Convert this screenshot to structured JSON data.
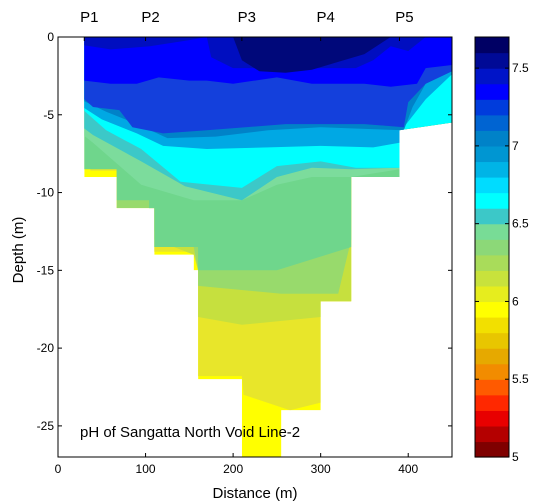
{
  "chart_data": {
    "type": "heatmap",
    "title": "pH of Sangatta North Void Line-2",
    "xlabel": "Distance (m)",
    "ylabel": "Depth (m)",
    "xlim": [
      0,
      450
    ],
    "ylim": [
      -27,
      0
    ],
    "x_ticks": [
      {
        "value": 0,
        "label": "0"
      },
      {
        "value": 100,
        "label": "100"
      },
      {
        "value": 200,
        "label": "200"
      },
      {
        "value": 300,
        "label": "300"
      },
      {
        "value": 400,
        "label": "400"
      }
    ],
    "y_ticks": [
      {
        "value": 0,
        "label": "0"
      },
      {
        "value": -5,
        "label": "-5"
      },
      {
        "value": -10,
        "label": "-10"
      },
      {
        "value": -15,
        "label": "-15"
      },
      {
        "value": -20,
        "label": "-20"
      },
      {
        "value": -25,
        "label": "-25"
      }
    ],
    "stations": [
      {
        "label": "P1",
        "x": 30
      },
      {
        "label": "P2",
        "x": 100
      },
      {
        "label": "P3",
        "x": 210
      },
      {
        "label": "P4",
        "x": 300
      },
      {
        "label": "P5",
        "x": 390
      }
    ],
    "colorbar": {
      "range": [
        5,
        7.7
      ],
      "ticks": [
        {
          "value": 5,
          "label": "5"
        },
        {
          "value": 5.5,
          "label": "5.5"
        },
        {
          "value": 6,
          "label": "6"
        },
        {
          "value": 6.5,
          "label": "6.5"
        },
        {
          "value": 7,
          "label": "7"
        },
        {
          "value": 7.5,
          "label": "7.5"
        }
      ],
      "colors": [
        "#7f0000",
        "#b40000",
        "#e80000",
        "#ff2800",
        "#ff5a00",
        "#f28c00",
        "#e6a900",
        "#e8c600",
        "#f2e000",
        "#ffff00",
        "#e6ed1e",
        "#c8e23c",
        "#a9dc5a",
        "#8cd878",
        "#78dc96",
        "#3cc8c8",
        "#00ffff",
        "#00dcff",
        "#00b4e6",
        "#0096d2",
        "#0082c8",
        "#0064d2",
        "#003cdc",
        "#0000ff",
        "#0014c8",
        "#000a96",
        "#000064"
      ]
    },
    "contour_fields": [
      {
        "value": 6.0,
        "color": "#ffff00",
        "points": [
          [
            30,
            -6
          ],
          [
            30,
            -9
          ],
          [
            67,
            -9
          ],
          [
            67,
            -11
          ],
          [
            110,
            -11
          ],
          [
            110,
            -14
          ],
          [
            155,
            -14
          ],
          [
            155,
            -15
          ],
          [
            160,
            -15
          ],
          [
            160,
            -22
          ],
          [
            210,
            -22
          ],
          [
            210,
            -27
          ],
          [
            255,
            -27
          ],
          [
            255,
            -24
          ],
          [
            300,
            -24
          ],
          [
            300,
            -17
          ],
          [
            335,
            -17
          ],
          [
            335,
            -13
          ],
          [
            335,
            -9
          ],
          [
            390,
            -9
          ],
          [
            390,
            -6
          ],
          [
            450,
            -5.5
          ],
          [
            450,
            -3
          ]
        ]
      },
      {
        "value": 6.1,
        "color": "#e8e62a",
        "points": [
          [
            37,
            -6
          ],
          [
            37,
            -8.6
          ],
          [
            67,
            -8.6
          ],
          [
            67,
            -11
          ],
          [
            104,
            -11
          ],
          [
            104,
            -13.8
          ],
          [
            160,
            -13.8
          ],
          [
            160,
            -21.8
          ],
          [
            210,
            -21.8
          ],
          [
            212,
            -23
          ],
          [
            265,
            -24
          ],
          [
            300,
            -23.5
          ],
          [
            300,
            -17
          ],
          [
            335,
            -17
          ],
          [
            335,
            -9
          ],
          [
            390,
            -9
          ],
          [
            390,
            -6
          ],
          [
            450,
            -5.5
          ],
          [
            450,
            -3
          ]
        ]
      },
      {
        "value": 6.3,
        "color": "#c6e03e",
        "points": [
          [
            40,
            -6
          ],
          [
            40,
            -8.4
          ],
          [
            67,
            -8.4
          ],
          [
            67,
            -11
          ],
          [
            110,
            -11
          ],
          [
            110,
            -13
          ],
          [
            155,
            -14
          ],
          [
            160,
            -15
          ],
          [
            160,
            -18
          ],
          [
            210,
            -18.5
          ],
          [
            300,
            -18
          ],
          [
            300,
            -17
          ],
          [
            335,
            -17
          ],
          [
            335,
            -9
          ],
          [
            390,
            -9
          ],
          [
            390,
            -6
          ],
          [
            450,
            -5.5
          ],
          [
            450,
            -3
          ]
        ]
      },
      {
        "value": 6.4,
        "color": "#98da6c",
        "points": [
          [
            42,
            -6
          ],
          [
            42,
            -8.3
          ],
          [
            67,
            -8.3
          ],
          [
            67,
            -11
          ],
          [
            110,
            -11
          ],
          [
            110,
            -12.5
          ],
          [
            155,
            -13.5
          ],
          [
            160,
            -15
          ],
          [
            160,
            -16
          ],
          [
            255,
            -16.5
          ],
          [
            320,
            -16.5
          ],
          [
            335,
            -13
          ],
          [
            335,
            -9
          ],
          [
            390,
            -9
          ],
          [
            390,
            -6
          ],
          [
            450,
            -5.5
          ],
          [
            450,
            -3
          ]
        ]
      },
      {
        "value": 6.5,
        "color": "#6fd68c",
        "points": [
          [
            0,
            -5
          ],
          [
            15,
            -6.5
          ],
          [
            28,
            -8.5
          ],
          [
            67,
            -8.5
          ],
          [
            67,
            -10.5
          ],
          [
            104,
            -10.5
          ],
          [
            104,
            -13.5
          ],
          [
            160,
            -13.5
          ],
          [
            160,
            -15
          ],
          [
            250,
            -15
          ],
          [
            335,
            -13.5
          ],
          [
            335,
            -9
          ],
          [
            390,
            -9
          ],
          [
            390,
            -6
          ],
          [
            450,
            -5.5
          ],
          [
            450,
            -3
          ]
        ]
      },
      {
        "value": 6.55,
        "color": "#7cdc9c",
        "points": [
          [
            0,
            -5
          ],
          [
            40,
            -6.8
          ],
          [
            95,
            -9.5
          ],
          [
            155,
            -10.5
          ],
          [
            210,
            -10.5
          ],
          [
            250,
            -9.5
          ],
          [
            290,
            -9
          ],
          [
            335,
            -9
          ],
          [
            390,
            -8.5
          ],
          [
            390,
            -6
          ],
          [
            450,
            -5.5
          ],
          [
            450,
            -3
          ]
        ]
      },
      {
        "value": 6.7,
        "color": "#3cc8c8",
        "points": [
          [
            0,
            -4.6
          ],
          [
            40,
            -6.3
          ],
          [
            95,
            -8
          ],
          [
            145,
            -9.6
          ],
          [
            210,
            -10.5
          ],
          [
            250,
            -9
          ],
          [
            290,
            -8.4
          ],
          [
            335,
            -8.5
          ],
          [
            390,
            -8.4
          ],
          [
            390,
            -6
          ],
          [
            450,
            -5.5
          ],
          [
            450,
            -3
          ]
        ]
      },
      {
        "value": 6.9,
        "color": "#00ffff",
        "points": [
          [
            0,
            -3.2
          ],
          [
            25,
            -4.5
          ],
          [
            55,
            -6
          ],
          [
            95,
            -7.2
          ],
          [
            140,
            -9.3
          ],
          [
            210,
            -9.7
          ],
          [
            250,
            -8.3
          ],
          [
            300,
            -8
          ],
          [
            340,
            -8.4
          ],
          [
            390,
            -8.4
          ],
          [
            390,
            -6
          ],
          [
            450,
            -5.5
          ],
          [
            450,
            -2.5
          ]
        ]
      },
      {
        "value": 7.0,
        "color": "#00a8e4",
        "points": [
          [
            0,
            -3
          ],
          [
            20,
            -4.2
          ],
          [
            50,
            -5.3
          ],
          [
            90,
            -6.2
          ],
          [
            120,
            -7
          ],
          [
            170,
            -7.2
          ],
          [
            240,
            -7.1
          ],
          [
            300,
            -7
          ],
          [
            360,
            -7.1
          ],
          [
            390,
            -6.8
          ],
          [
            395,
            -5.8
          ],
          [
            420,
            -4
          ],
          [
            450,
            -2.4
          ]
        ]
      },
      {
        "value": 7.1,
        "color": "#0082c8",
        "points": [
          [
            0,
            -2.8
          ],
          [
            25,
            -4
          ],
          [
            55,
            -4.8
          ],
          [
            90,
            -5.6
          ],
          [
            125,
            -6.5
          ],
          [
            180,
            -6.4
          ],
          [
            240,
            -6
          ],
          [
            300,
            -5.8
          ],
          [
            395,
            -6
          ],
          [
            405,
            -4.5
          ],
          [
            420,
            -3
          ],
          [
            450,
            -2.2
          ]
        ]
      },
      {
        "value": 7.3,
        "color": "#1440dc",
        "points": [
          [
            0,
            -2.4
          ],
          [
            20,
            -3.5
          ],
          [
            40,
            -4.5
          ],
          [
            70,
            -4.7
          ],
          [
            85,
            -5.8
          ],
          [
            120,
            -6.2
          ],
          [
            170,
            -6
          ],
          [
            260,
            -5.6
          ],
          [
            350,
            -5.6
          ],
          [
            395,
            -5.8
          ],
          [
            400,
            -4.2
          ],
          [
            420,
            -3
          ],
          [
            450,
            -2.2
          ]
        ]
      },
      {
        "value": 7.45,
        "color": "#0000ff",
        "points": [
          [
            0,
            -1.4
          ],
          [
            30,
            -2.8
          ],
          [
            60,
            -3
          ],
          [
            90,
            -3
          ],
          [
            115,
            -2.6
          ],
          [
            150,
            -2.8
          ],
          [
            170,
            -2.8
          ],
          [
            200,
            -3
          ],
          [
            250,
            -2.6
          ],
          [
            290,
            -3
          ],
          [
            350,
            -3
          ],
          [
            380,
            -3.2
          ],
          [
            410,
            -3
          ],
          [
            420,
            -2
          ],
          [
            450,
            -1.8
          ]
        ]
      },
      {
        "value": 7.55,
        "color": "#000ec0",
        "points": [
          [
            15,
            -0.4
          ],
          [
            60,
            -0.8
          ],
          [
            105,
            -0.6
          ],
          [
            150,
            -0.2
          ],
          [
            170,
            0
          ],
          [
            175,
            -1.3
          ],
          [
            200,
            -2
          ],
          [
            290,
            -2
          ],
          [
            340,
            -2
          ],
          [
            360,
            -1.5
          ],
          [
            380,
            -0.6
          ],
          [
            400,
            -0.9
          ],
          [
            420,
            0
          ]
        ]
      },
      {
        "value": 7.65,
        "color": "#00087a",
        "points": [
          [
            200,
            0
          ],
          [
            210,
            -1.5
          ],
          [
            230,
            -2.2
          ],
          [
            260,
            -2.3
          ],
          [
            290,
            -2.1
          ],
          [
            320,
            -1.6
          ],
          [
            350,
            -1.1
          ],
          [
            380,
            0
          ]
        ]
      }
    ]
  }
}
